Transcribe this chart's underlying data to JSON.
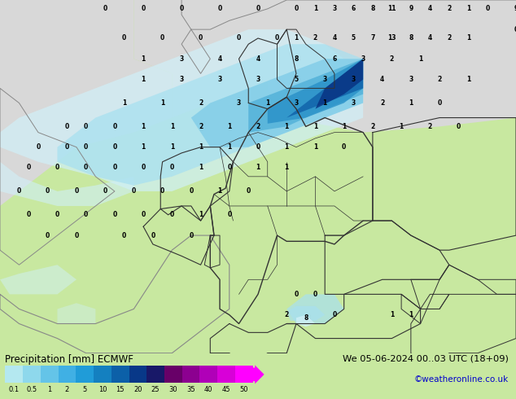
{
  "title_left": "Precipitation [mm] ECMWF",
  "title_right": "We 05-06-2024 00..03 UTC (18+09)",
  "credit": "©weatheronline.co.uk",
  "colorbar_levels": [
    0.1,
    0.5,
    1,
    2,
    5,
    10,
    15,
    20,
    25,
    30,
    35,
    40,
    45,
    50
  ],
  "colorbar_colors": [
    "#b4e8f0",
    "#8ed8ec",
    "#64c4e8",
    "#40b0e4",
    "#209cd8",
    "#1480c0",
    "#0c60a8",
    "#083888",
    "#181868",
    "#680068",
    "#8c0090",
    "#b000b8",
    "#d800d8",
    "#ff00ff"
  ],
  "land_color": "#c8e8a0",
  "sea_color": "#d8d8d8",
  "border_color": "#888888",
  "state_border_color": "#333333",
  "precip_light1": "#d0f0f8",
  "precip_light2": "#a8e0f0",
  "precip_med1": "#80cce8",
  "precip_med2": "#50b0d8",
  "precip_med3": "#2890c8",
  "precip_dark1": "#1060a8",
  "precip_dark2": "#083080",
  "fig_width": 6.34,
  "fig_height": 4.9,
  "dpi": 100
}
